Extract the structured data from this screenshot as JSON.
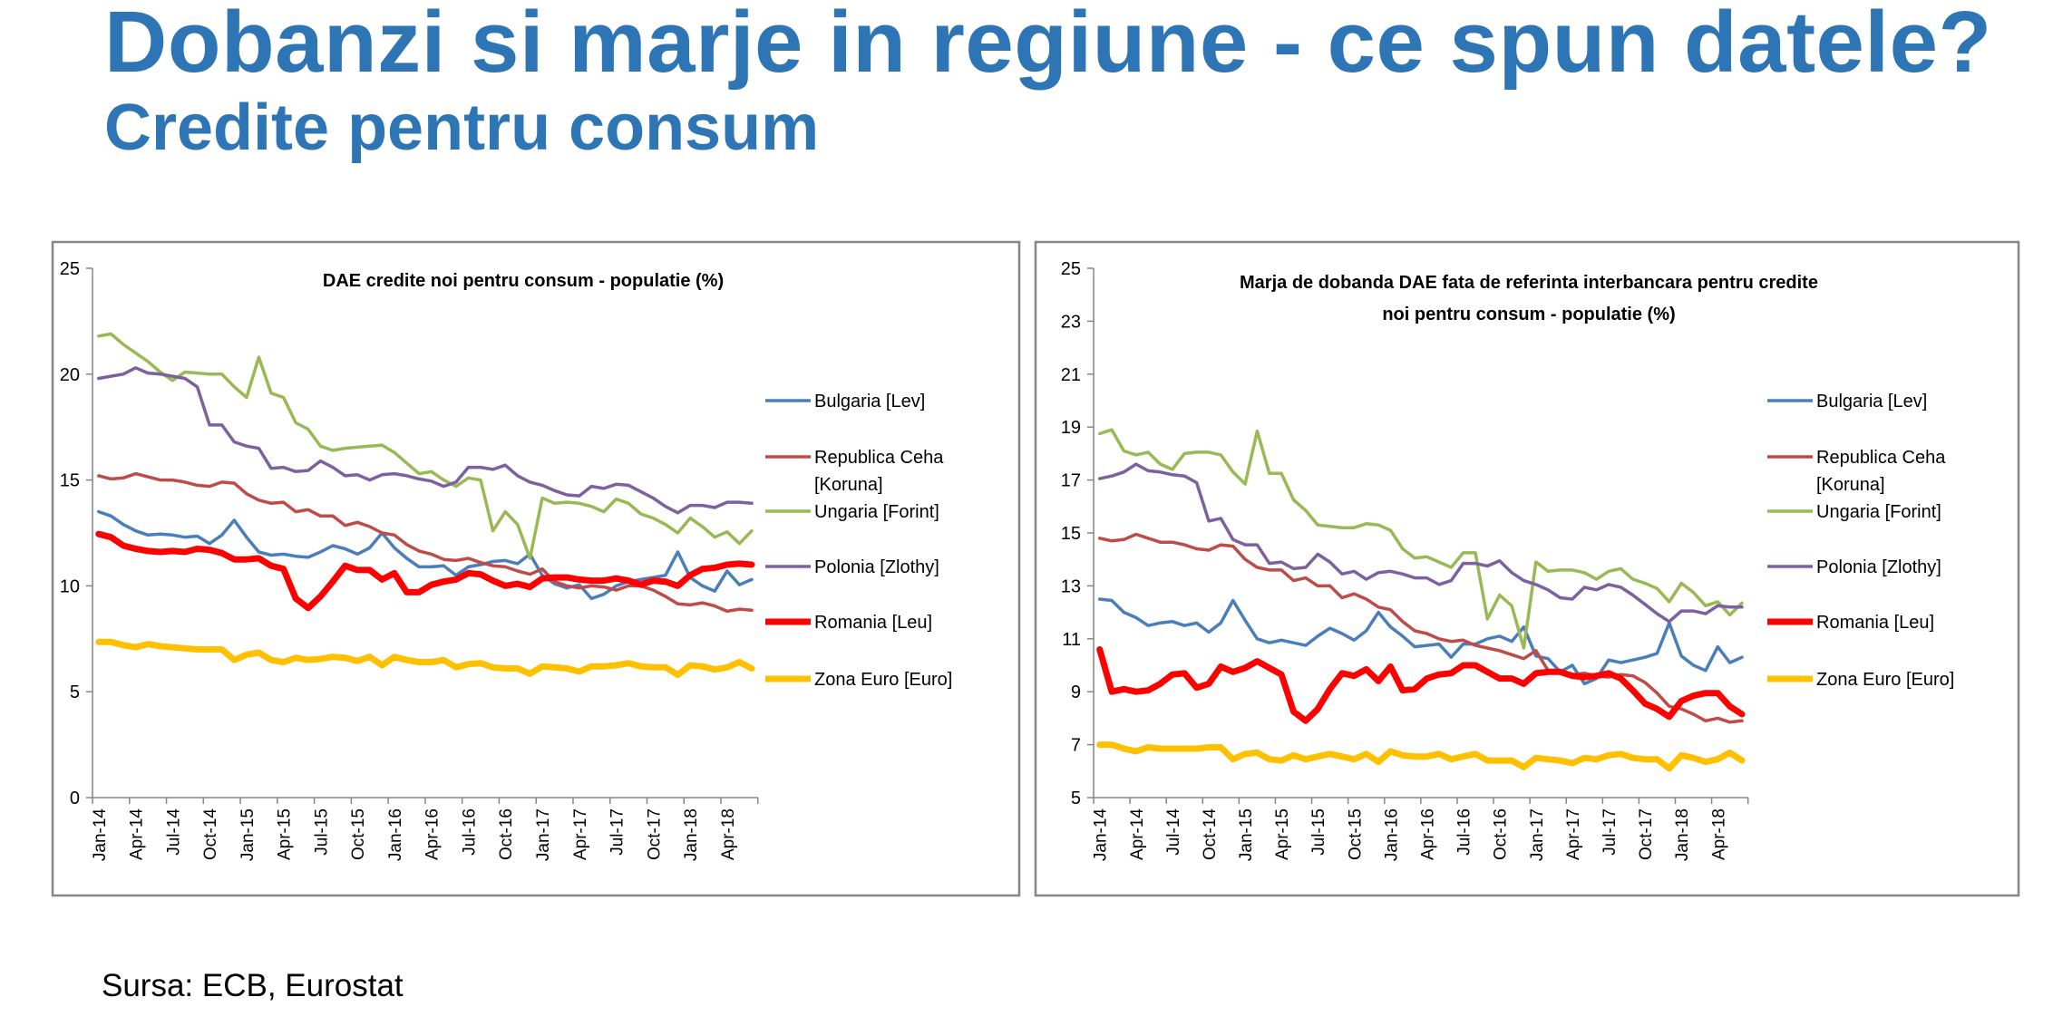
{
  "header": {
    "title": "Dobanzi si marje in regiune - ce spun datele?",
    "subtitle": "Credite pentru consum"
  },
  "footer": {
    "source": "Sursa: ECB, Eurostat"
  },
  "colors": {
    "Bulgaria": "#4a7ebb",
    "Ceha": "#be4b48",
    "Ungaria": "#98b954",
    "Polonia": "#7d60a0",
    "Romania": "#ff0000",
    "Euro": "#ffc000",
    "title": "#2e75b6"
  },
  "chart_data": [
    {
      "type": "line",
      "title": [
        "DAE credite noi pentru consum  - populatie (%)"
      ],
      "xlabel": "",
      "ylabel": "",
      "ylim": [
        0,
        25
      ],
      "yticks": [
        0,
        5,
        10,
        15,
        20,
        25
      ],
      "x_start": "Jan-14",
      "x_end": "Jun-18",
      "frequency": "monthly",
      "xtick_labels": [
        "Jan-14",
        "Apr-14",
        "Jul-14",
        "Oct-14",
        "Jan-15",
        "Apr-15",
        "Jul-15",
        "Oct-15",
        "Jan-16",
        "Apr-16",
        "Jul-16",
        "Oct-16",
        "Jan-17",
        "Apr-17",
        "Jul-17",
        "Oct-17",
        "Jan-18",
        "Apr-18"
      ],
      "grid": false,
      "legend": "right",
      "series": [
        {
          "name": "Bulgaria [Lev]",
          "legend_lines": [
            "Bulgaria [Lev]"
          ],
          "color": "#4a7ebb",
          "width": "normal",
          "values": [
            13.5,
            13.3,
            12.9,
            12.6,
            12.4,
            12.45,
            12.4,
            12.3,
            12.35,
            12.0,
            12.4,
            13.1,
            12.3,
            11.6,
            11.45,
            11.5,
            11.4,
            11.35,
            11.6,
            11.9,
            11.75,
            11.5,
            11.8,
            12.5,
            11.8,
            11.3,
            10.9,
            10.9,
            10.95,
            10.5,
            10.9,
            11.0,
            11.15,
            11.2,
            11.05,
            11.5,
            10.5,
            10.1,
            9.9,
            10.05,
            9.4,
            9.6,
            10.0,
            10.2,
            10.3,
            10.4,
            10.5,
            11.6,
            10.4,
            10.0,
            9.75,
            10.7,
            10.05,
            10.3
          ]
        },
        {
          "name": "Republica Ceha [Koruna]",
          "legend_lines": [
            "Republica Ceha",
            "[Koruna]"
          ],
          "color": "#be4b48",
          "width": "normal",
          "values": [
            15.2,
            15.05,
            15.1,
            15.3,
            15.15,
            15.0,
            15.0,
            14.9,
            14.75,
            14.7,
            14.9,
            14.85,
            14.35,
            14.05,
            13.9,
            13.95,
            13.5,
            13.6,
            13.3,
            13.3,
            12.85,
            13.0,
            12.8,
            12.5,
            12.4,
            11.95,
            11.65,
            11.5,
            11.25,
            11.2,
            11.3,
            11.1,
            10.95,
            10.9,
            10.7,
            10.55,
            10.8,
            10.2,
            10.0,
            9.9,
            10.0,
            9.95,
            9.8,
            10.0,
            10.0,
            9.8,
            9.5,
            9.15,
            9.1,
            9.2,
            9.05,
            8.8,
            8.9,
            8.85
          ]
        },
        {
          "name": "Ungaria [Forint]",
          "legend_lines": [
            "Ungaria [Forint]"
          ],
          "color": "#98b954",
          "width": "normal",
          "values": [
            21.8,
            21.9,
            21.4,
            21.0,
            20.6,
            20.1,
            19.7,
            20.1,
            20.05,
            20.0,
            20.0,
            19.4,
            18.9,
            20.8,
            19.1,
            18.9,
            17.7,
            17.4,
            16.6,
            16.4,
            16.5,
            16.55,
            16.6,
            16.65,
            16.3,
            15.8,
            15.3,
            15.4,
            15.0,
            14.7,
            15.1,
            15.0,
            12.6,
            13.5,
            12.9,
            11.3,
            14.15,
            13.9,
            13.95,
            13.9,
            13.75,
            13.5,
            14.1,
            13.9,
            13.4,
            13.2,
            12.9,
            12.5,
            13.2,
            12.8,
            12.3,
            12.55,
            12.0,
            12.6
          ]
        },
        {
          "name": "Polonia [Zlothy]",
          "legend_lines": [
            "Polonia [Zlothy]"
          ],
          "color": "#7d60a0",
          "width": "normal",
          "values": [
            19.8,
            19.9,
            20.0,
            20.3,
            20.05,
            20.0,
            19.9,
            19.8,
            19.4,
            17.6,
            17.6,
            16.8,
            16.6,
            16.5,
            15.55,
            15.6,
            15.4,
            15.45,
            15.9,
            15.6,
            15.2,
            15.25,
            15.0,
            15.25,
            15.3,
            15.2,
            15.05,
            14.95,
            14.7,
            14.9,
            15.6,
            15.6,
            15.5,
            15.7,
            15.2,
            14.9,
            14.75,
            14.5,
            14.3,
            14.25,
            14.7,
            14.6,
            14.8,
            14.75,
            14.45,
            14.15,
            13.75,
            13.45,
            13.8,
            13.8,
            13.7,
            13.95,
            13.95,
            13.9
          ]
        },
        {
          "name": "Romania [Leu]",
          "legend_lines": [
            "Romania [Leu]"
          ],
          "color": "#ff0000",
          "width": "thick",
          "values": [
            12.45,
            12.3,
            11.9,
            11.75,
            11.65,
            11.6,
            11.65,
            11.6,
            11.75,
            11.7,
            11.55,
            11.25,
            11.25,
            11.3,
            10.95,
            10.8,
            9.4,
            8.95,
            9.5,
            10.2,
            10.95,
            10.75,
            10.75,
            10.3,
            10.6,
            9.7,
            9.7,
            10.05,
            10.2,
            10.3,
            10.6,
            10.55,
            10.25,
            10.0,
            10.1,
            9.95,
            10.35,
            10.4,
            10.4,
            10.3,
            10.25,
            10.25,
            10.35,
            10.25,
            10.05,
            10.25,
            10.2,
            10.0,
            10.5,
            10.8,
            10.85,
            11.0,
            11.05,
            11.0
          ]
        },
        {
          "name": "Zona Euro [Euro]",
          "legend_lines": [
            "Zona Euro [Euro]"
          ],
          "color": "#ffc000",
          "width": "thick",
          "values": [
            7.35,
            7.35,
            7.2,
            7.1,
            7.25,
            7.15,
            7.1,
            7.05,
            7.0,
            7.0,
            7.0,
            6.5,
            6.75,
            6.85,
            6.5,
            6.4,
            6.6,
            6.5,
            6.55,
            6.65,
            6.6,
            6.45,
            6.65,
            6.25,
            6.65,
            6.5,
            6.4,
            6.4,
            6.5,
            6.15,
            6.3,
            6.35,
            6.15,
            6.1,
            6.1,
            5.85,
            6.2,
            6.15,
            6.1,
            5.95,
            6.2,
            6.2,
            6.25,
            6.35,
            6.2,
            6.15,
            6.15,
            5.8,
            6.25,
            6.2,
            6.05,
            6.15,
            6.4,
            6.1
          ]
        }
      ]
    },
    {
      "type": "line",
      "title": [
        "Marja de dobanda  DAE fata de referinta interbancara pentru credite",
        "noi pentru consum  - populatie (%)"
      ],
      "xlabel": "",
      "ylabel": "",
      "ylim": [
        5,
        25
      ],
      "yticks": [
        5,
        7,
        9,
        11,
        13,
        15,
        17,
        19,
        21,
        23,
        25
      ],
      "x_start": "Jan-14",
      "x_end": "Jun-18",
      "frequency": "monthly",
      "xtick_labels": [
        "Jan-14",
        "Apr-14",
        "Jul-14",
        "Oct-14",
        "Jan-15",
        "Apr-15",
        "Jul-15",
        "Oct-15",
        "Jan-16",
        "Apr-16",
        "Jul-16",
        "Oct-16",
        "Jan-17",
        "Apr-17",
        "Jul-17",
        "Oct-17",
        "Jan-18",
        "Apr-18"
      ],
      "grid": false,
      "legend": "right",
      "series": [
        {
          "name": "Bulgaria [Lev]",
          "legend_lines": [
            "Bulgaria [Lev]"
          ],
          "color": "#4a7ebb",
          "width": "normal",
          "values": [
            12.5,
            12.45,
            12.0,
            11.8,
            11.5,
            11.6,
            11.65,
            11.5,
            11.6,
            11.25,
            11.6,
            12.45,
            11.7,
            11.0,
            10.85,
            10.95,
            10.85,
            10.75,
            11.1,
            11.4,
            11.2,
            10.95,
            11.3,
            12.0,
            11.45,
            11.1,
            10.7,
            10.75,
            10.8,
            10.3,
            10.8,
            10.8,
            11.0,
            11.1,
            10.9,
            11.45,
            10.35,
            10.25,
            9.75,
            10.0,
            9.3,
            9.5,
            10.2,
            10.1,
            10.2,
            10.3,
            10.45,
            11.6,
            10.35,
            10.0,
            9.8,
            10.7,
            10.1,
            10.3
          ]
        },
        {
          "name": "Republica Ceha [Koruna]",
          "legend_lines": [
            "Republica Ceha",
            "[Koruna]"
          ],
          "color": "#be4b48",
          "width": "normal",
          "values": [
            14.8,
            14.7,
            14.75,
            14.95,
            14.8,
            14.65,
            14.65,
            14.55,
            14.4,
            14.35,
            14.55,
            14.5,
            14.0,
            13.7,
            13.6,
            13.6,
            13.2,
            13.3,
            13.0,
            13.0,
            12.55,
            12.7,
            12.5,
            12.2,
            12.1,
            11.65,
            11.3,
            11.2,
            11.0,
            10.9,
            10.95,
            10.75,
            10.65,
            10.55,
            10.4,
            10.25,
            10.55,
            9.8,
            9.75,
            9.65,
            9.7,
            9.6,
            9.55,
            9.65,
            9.6,
            9.35,
            8.95,
            8.45,
            8.35,
            8.15,
            7.9,
            8.0,
            7.85,
            7.9
          ]
        },
        {
          "name": "Ungaria [Forint]",
          "legend_lines": [
            "Ungaria [Forint]"
          ],
          "color": "#98b954",
          "width": "normal",
          "values": [
            18.75,
            18.9,
            18.1,
            17.95,
            18.05,
            17.6,
            17.4,
            18.0,
            18.05,
            18.05,
            17.95,
            17.3,
            16.85,
            18.85,
            17.25,
            17.25,
            16.25,
            15.85,
            15.3,
            15.25,
            15.2,
            15.2,
            15.35,
            15.3,
            15.1,
            14.4,
            14.05,
            14.1,
            13.9,
            13.7,
            14.25,
            14.25,
            11.75,
            12.65,
            12.25,
            10.65,
            13.9,
            13.55,
            13.6,
            13.6,
            13.5,
            13.25,
            13.55,
            13.65,
            13.25,
            13.1,
            12.9,
            12.4,
            13.1,
            12.75,
            12.25,
            12.4,
            11.9,
            12.35
          ]
        },
        {
          "name": "Polonia [Zlothy]",
          "legend_lines": [
            "Polonia [Zlothy]"
          ],
          "color": "#7d60a0",
          "width": "normal",
          "values": [
            17.05,
            17.15,
            17.3,
            17.6,
            17.35,
            17.3,
            17.2,
            17.15,
            16.9,
            15.45,
            15.55,
            14.75,
            14.55,
            14.55,
            13.85,
            13.9,
            13.65,
            13.7,
            14.2,
            13.9,
            13.45,
            13.55,
            13.25,
            13.5,
            13.55,
            13.45,
            13.3,
            13.3,
            13.05,
            13.2,
            13.85,
            13.85,
            13.75,
            13.95,
            13.5,
            13.2,
            13.05,
            12.85,
            12.55,
            12.5,
            12.95,
            12.85,
            13.05,
            12.95,
            12.65,
            12.3,
            11.95,
            11.65,
            12.05,
            12.05,
            11.95,
            12.25,
            12.2,
            12.2
          ]
        },
        {
          "name": "Romania [Leu]",
          "legend_lines": [
            "Romania [Leu]"
          ],
          "color": "#ff0000",
          "width": "thick",
          "values": [
            10.6,
            9.0,
            9.1,
            9.0,
            9.05,
            9.3,
            9.65,
            9.7,
            9.15,
            9.3,
            9.95,
            9.75,
            9.9,
            10.15,
            9.9,
            9.65,
            8.25,
            7.9,
            8.35,
            9.1,
            9.7,
            9.6,
            9.85,
            9.4,
            9.95,
            9.05,
            9.1,
            9.5,
            9.65,
            9.7,
            10.0,
            10.0,
            9.75,
            9.5,
            9.5,
            9.3,
            9.7,
            9.75,
            9.75,
            9.6,
            9.55,
            9.6,
            9.7,
            9.5,
            9.05,
            8.55,
            8.35,
            8.05,
            8.65,
            8.85,
            8.95,
            8.95,
            8.45,
            8.15
          ]
        },
        {
          "name": "Zona Euro [Euro]",
          "legend_lines": [
            "Zona Euro [Euro]"
          ],
          "color": "#ffc000",
          "width": "thick",
          "values": [
            7.0,
            7.0,
            6.85,
            6.75,
            6.9,
            6.85,
            6.85,
            6.85,
            6.85,
            6.9,
            6.9,
            6.45,
            6.65,
            6.7,
            6.45,
            6.4,
            6.6,
            6.45,
            6.55,
            6.65,
            6.55,
            6.45,
            6.65,
            6.35,
            6.75,
            6.6,
            6.55,
            6.55,
            6.65,
            6.45,
            6.55,
            6.65,
            6.4,
            6.4,
            6.4,
            6.15,
            6.5,
            6.45,
            6.4,
            6.3,
            6.5,
            6.45,
            6.6,
            6.65,
            6.5,
            6.45,
            6.45,
            6.1,
            6.6,
            6.5,
            6.35,
            6.45,
            6.7,
            6.4
          ]
        }
      ]
    }
  ]
}
